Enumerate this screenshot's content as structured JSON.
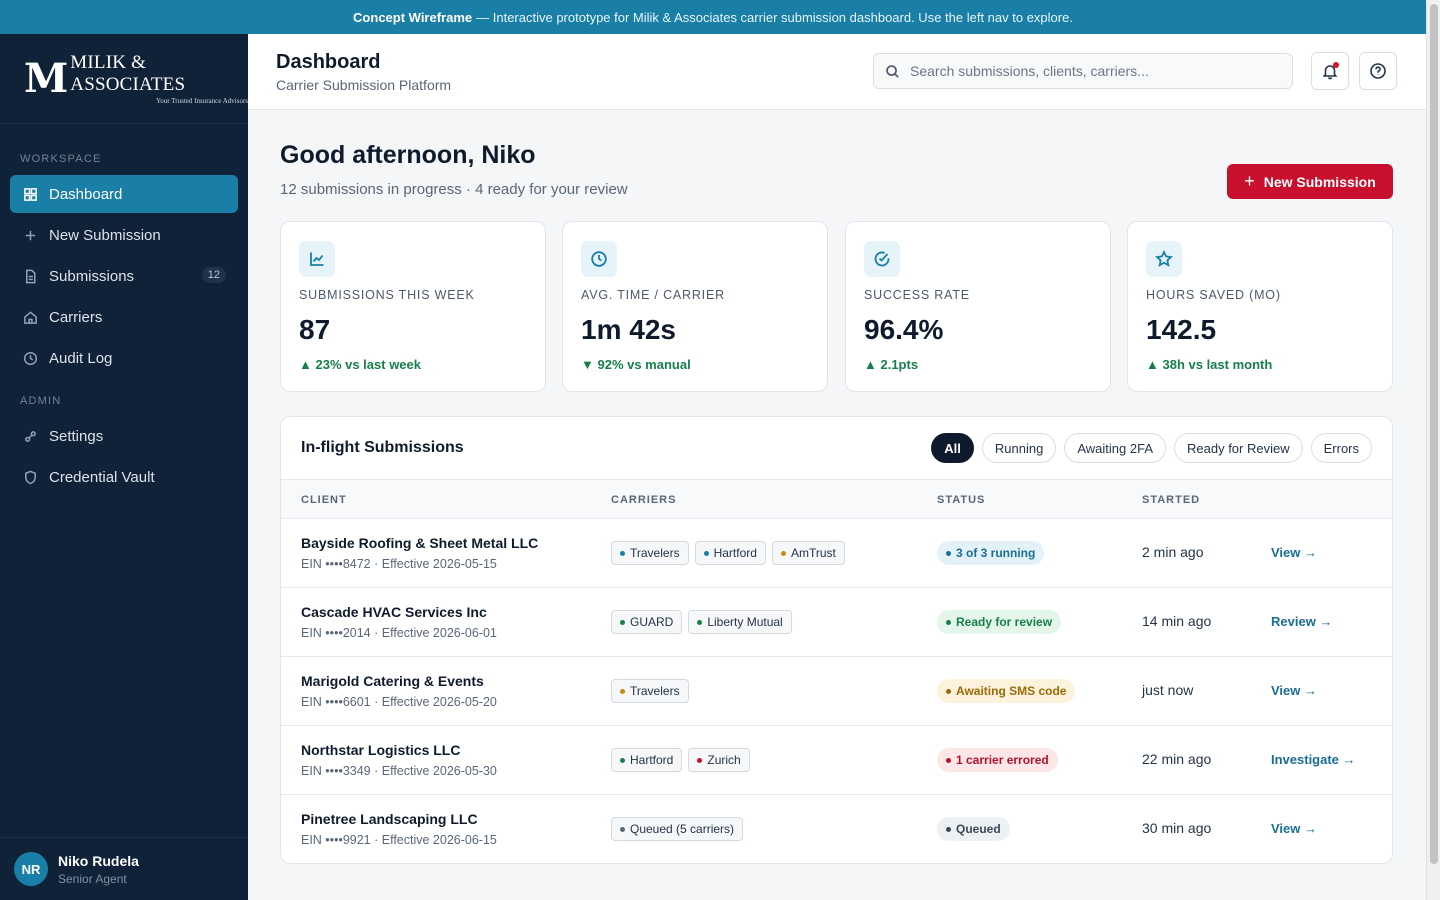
{
  "banner": {
    "strong": "Concept Wireframe",
    "text": "— Interactive prototype for Milik & Associates carrier submission dashboard. Use the left nav to explore."
  },
  "brand": {
    "mark": "M",
    "name": "MILIK & ASSOCIATES",
    "tagline": "Your Trusted Insurance Advisors"
  },
  "sidebar": {
    "workspace_label": "WORKSPACE",
    "admin_label": "ADMIN",
    "items": [
      {
        "label": "Dashboard",
        "icon": "grid-icon",
        "active": true
      },
      {
        "label": "New Submission",
        "icon": "plus-icon"
      },
      {
        "label": "Submissions",
        "icon": "document-icon",
        "badge": "12"
      },
      {
        "label": "Carriers",
        "icon": "home-icon"
      },
      {
        "label": "Audit Log",
        "icon": "clock-icon"
      },
      {
        "label": "Settings",
        "icon": "settings-icon"
      },
      {
        "label": "Credential Vault",
        "icon": "shield-icon"
      }
    ]
  },
  "user": {
    "initials": "NR",
    "name": "Niko Rudela",
    "role": "Senior Agent"
  },
  "header": {
    "title": "Dashboard",
    "subtitle": "Carrier Submission Platform",
    "search_placeholder": "Search submissions, clients, carriers..."
  },
  "main": {
    "greeting": "Good afternoon, Niko",
    "summary": "12 submissions in progress · 4 ready for your review",
    "new_button": "New Submission"
  },
  "stats": [
    {
      "label": "SUBMISSIONS THIS WEEK",
      "value": "87",
      "delta": "▲ 23% vs last week",
      "icon": "chart-icon"
    },
    {
      "label": "AVG. TIME / CARRIER",
      "value": "1m 42s",
      "delta": "▼ 92% vs manual",
      "icon": "clock-icon"
    },
    {
      "label": "SUCCESS RATE",
      "value": "96.4%",
      "delta": "▲ 2.1pts",
      "icon": "check-circle-icon"
    },
    {
      "label": "HOURS SAVED (MO)",
      "value": "142.5",
      "delta": "▲ 38h vs last month",
      "icon": "star-icon"
    }
  ],
  "panel": {
    "title": "In-flight Submissions",
    "filters": [
      "All",
      "Running",
      "Awaiting 2FA",
      "Ready for Review",
      "Errors"
    ],
    "columns": [
      "CLIENT",
      "CARRIERS",
      "STATUS",
      "STARTED"
    ],
    "rows": [
      {
        "client": "Bayside Roofing & Sheet Metal LLC",
        "meta": "EIN ••••8472 · Effective 2026-05-15",
        "carriers": [
          {
            "name": "Travelers",
            "color": "#1a7fa6"
          },
          {
            "name": "Hartford",
            "color": "#1a7fa6"
          },
          {
            "name": "AmTrust",
            "color": "#c98a12"
          }
        ],
        "status": "3 of 3 running",
        "status_bg": "#e3f2f8",
        "status_fg": "#1a6d96",
        "started": "2 min ago",
        "action": "View →"
      },
      {
        "client": "Cascade HVAC Services Inc",
        "meta": "EIN ••••2014 · Effective 2026-06-01",
        "carriers": [
          {
            "name": "GUARD",
            "color": "#17804a"
          },
          {
            "name": "Liberty Mutual",
            "color": "#17804a"
          }
        ],
        "status": "Ready for review",
        "status_bg": "#e4f5ea",
        "status_fg": "#17804a",
        "started": "14 min ago",
        "action": "Review →"
      },
      {
        "client": "Marigold Catering & Events",
        "meta": "EIN ••••6601 · Effective 2026-05-20",
        "carriers": [
          {
            "name": "Travelers",
            "color": "#c98a12"
          }
        ],
        "status": "Awaiting SMS code",
        "status_bg": "#fdf3dc",
        "status_fg": "#9a6a06",
        "started": "just now",
        "action": "View →"
      },
      {
        "client": "Northstar Logistics LLC",
        "meta": "EIN ••••3349 · Effective 2026-05-30",
        "carriers": [
          {
            "name": "Hartford",
            "color": "#17804a"
          },
          {
            "name": "Zurich",
            "color": "#c8102e"
          }
        ],
        "status": "1 carrier errored",
        "status_bg": "#fce6e8",
        "status_fg": "#b3132a",
        "started": "22 min ago",
        "action": "Investigate →"
      },
      {
        "client": "Pinetree Landscaping LLC",
        "meta": "EIN ••••9921 · Effective 2026-06-15",
        "carriers": [
          {
            "name": "Queued (5 carriers)",
            "color": "#5a6778"
          }
        ],
        "status": "Queued",
        "status_bg": "#eef1f4",
        "status_fg": "#3a4858",
        "started": "30 min ago",
        "action": "View →"
      }
    ]
  },
  "colors": {
    "accent": "#1a7fa6",
    "brand_red": "#c8102e",
    "sidebar_bg": "#0f2237"
  }
}
